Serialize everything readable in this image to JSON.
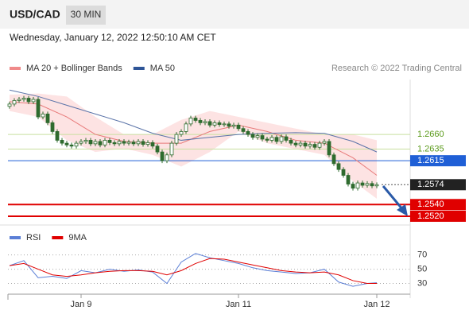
{
  "header": {
    "symbol": "USD/CAD",
    "timeframe": "30 MIN",
    "timestamp": "Wednesday, January 12, 2022 12:50:10 AM CET"
  },
  "chart_data": {
    "type": "candlestick",
    "legend": [
      {
        "name": "MA 20 + Bollinger Bands",
        "color": "#f08a8a"
      },
      {
        "name": "MA 50",
        "color": "#2e5597"
      }
    ],
    "credit": "Research © 2022 Trading Central",
    "xlim": [
      -2,
      84
    ],
    "xticks": [
      {
        "value": 15,
        "label": "Jan 9"
      },
      {
        "value": 48,
        "label": "Jan 11"
      },
      {
        "value": 77,
        "label": "Jan 12"
      }
    ],
    "ylim": [
      1.2505,
      1.2754
    ],
    "up_color": "#ffffff",
    "down_color": "#2e6b2e",
    "wick_color": "#2e6b2e",
    "candles": [
      [
        1.2708,
        1.2716,
        1.2704,
        1.2712
      ],
      [
        1.2712,
        1.2722,
        1.2708,
        1.2718
      ],
      [
        1.2718,
        1.2724,
        1.2714,
        1.272
      ],
      [
        1.272,
        1.2726,
        1.2716,
        1.2722
      ],
      [
        1.2722,
        1.2726,
        1.2712,
        1.2716
      ],
      [
        1.2716,
        1.2724,
        1.2712,
        1.272
      ],
      [
        1.272,
        1.2724,
        1.2686,
        1.269
      ],
      [
        1.269,
        1.2699,
        1.2686,
        1.2695
      ],
      [
        1.2695,
        1.2699,
        1.2676,
        1.268
      ],
      [
        1.268,
        1.2684,
        1.2661,
        1.2665
      ],
      [
        1.2665,
        1.2669,
        1.2646,
        1.265
      ],
      [
        1.265,
        1.2654,
        1.2641,
        1.2645
      ],
      [
        1.2645,
        1.2649,
        1.2638,
        1.2642
      ],
      [
        1.2642,
        1.2646,
        1.2636,
        1.264
      ],
      [
        1.264,
        1.2649,
        1.2636,
        1.2645
      ],
      [
        1.2645,
        1.2652,
        1.2641,
        1.2648
      ],
      [
        1.2648,
        1.2654,
        1.2644,
        1.265
      ],
      [
        1.265,
        1.2654,
        1.264,
        1.2644
      ],
      [
        1.2644,
        1.2652,
        1.264,
        1.2648
      ],
      [
        1.2648,
        1.2652,
        1.2638,
        1.2642
      ],
      [
        1.2642,
        1.2654,
        1.2638,
        1.265
      ],
      [
        1.265,
        1.2654,
        1.2642,
        1.2646
      ],
      [
        1.2646,
        1.265,
        1.264,
        1.2644
      ],
      [
        1.2644,
        1.2652,
        1.264,
        1.2648
      ],
      [
        1.2648,
        1.2652,
        1.2641,
        1.2645
      ],
      [
        1.2645,
        1.2651,
        1.2641,
        1.2647
      ],
      [
        1.2647,
        1.2651,
        1.264,
        1.2644
      ],
      [
        1.2644,
        1.2652,
        1.264,
        1.2648
      ],
      [
        1.2648,
        1.2652,
        1.2639,
        1.2643
      ],
      [
        1.2643,
        1.265,
        1.2639,
        1.2646
      ],
      [
        1.2646,
        1.265,
        1.2636,
        1.264
      ],
      [
        1.264,
        1.2644,
        1.2626,
        1.263
      ],
      [
        1.263,
        1.2634,
        1.2611,
        1.2615
      ],
      [
        1.2615,
        1.2629,
        1.2611,
        1.2625
      ],
      [
        1.2625,
        1.2649,
        1.2621,
        1.2645
      ],
      [
        1.2645,
        1.2664,
        1.2641,
        1.266
      ],
      [
        1.266,
        1.2669,
        1.2656,
        1.2665
      ],
      [
        1.2665,
        1.2682,
        1.2661,
        1.2678
      ],
      [
        1.2678,
        1.2692,
        1.2674,
        1.2688
      ],
      [
        1.2688,
        1.2692,
        1.268,
        1.2684
      ],
      [
        1.2684,
        1.2688,
        1.2676,
        1.268
      ],
      [
        1.268,
        1.2686,
        1.2676,
        1.2682
      ],
      [
        1.2682,
        1.2686,
        1.2672,
        1.2676
      ],
      [
        1.2676,
        1.2684,
        1.2672,
        1.268
      ],
      [
        1.268,
        1.2684,
        1.2673,
        1.2677
      ],
      [
        1.2677,
        1.2682,
        1.2673,
        1.2678
      ],
      [
        1.2678,
        1.2682,
        1.267,
        1.2674
      ],
      [
        1.2674,
        1.268,
        1.267,
        1.2676
      ],
      [
        1.2676,
        1.268,
        1.2666,
        1.267
      ],
      [
        1.267,
        1.2674,
        1.2661,
        1.2665
      ],
      [
        1.2665,
        1.2669,
        1.2656,
        1.266
      ],
      [
        1.266,
        1.2664,
        1.2651,
        1.2655
      ],
      [
        1.2655,
        1.2662,
        1.2651,
        1.2658
      ],
      [
        1.2658,
        1.2662,
        1.2648,
        1.2652
      ],
      [
        1.2652,
        1.2656,
        1.2646,
        1.265
      ],
      [
        1.265,
        1.2659,
        1.2646,
        1.2655
      ],
      [
        1.2655,
        1.2659,
        1.2644,
        1.2648
      ],
      [
        1.2648,
        1.266,
        1.2644,
        1.2656
      ],
      [
        1.2656,
        1.266,
        1.2646,
        1.265
      ],
      [
        1.265,
        1.2654,
        1.2641,
        1.2645
      ],
      [
        1.2645,
        1.2649,
        1.2638,
        1.2642
      ],
      [
        1.2642,
        1.2649,
        1.2638,
        1.2645
      ],
      [
        1.2645,
        1.2649,
        1.2636,
        1.264
      ],
      [
        1.264,
        1.2647,
        1.2636,
        1.2643
      ],
      [
        1.2643,
        1.2647,
        1.2634,
        1.2638
      ],
      [
        1.2638,
        1.2649,
        1.2634,
        1.2645
      ],
      [
        1.2645,
        1.2652,
        1.2641,
        1.2648
      ],
      [
        1.2648,
        1.2652,
        1.2621,
        1.2625
      ],
      [
        1.2625,
        1.2629,
        1.2606,
        1.261
      ],
      [
        1.261,
        1.2614,
        1.2596,
        1.26
      ],
      [
        1.26,
        1.2604,
        1.2586,
        1.259
      ],
      [
        1.259,
        1.2594,
        1.2571,
        1.2575
      ],
      [
        1.2575,
        1.2579,
        1.2564,
        1.2568
      ],
      [
        1.2568,
        1.2581,
        1.2564,
        1.2577
      ],
      [
        1.2577,
        1.2581,
        1.2569,
        1.2573
      ],
      [
        1.2573,
        1.258,
        1.2569,
        1.2576
      ],
      [
        1.2576,
        1.258,
        1.2568,
        1.2572
      ],
      [
        1.2572,
        1.2578,
        1.2568,
        1.2574
      ]
    ],
    "overlay_x": [
      0,
      6,
      12,
      18,
      24,
      30,
      36,
      42,
      48,
      54,
      60,
      66,
      72,
      77
    ],
    "bands": {
      "color": "#fcdcdc",
      "upper": [
        1.2728,
        1.273,
        1.2725,
        1.269,
        1.266,
        1.266,
        1.2685,
        1.27,
        1.269,
        1.268,
        1.267,
        1.266,
        1.266,
        1.265
      ],
      "lower": [
        1.27,
        1.269,
        1.265,
        1.263,
        1.2636,
        1.2625,
        1.2605,
        1.263,
        1.2665,
        1.2645,
        1.2635,
        1.2625,
        1.258,
        1.255
      ]
    },
    "series": [
      {
        "name": "MA 20",
        "color": "#e87a7a",
        "values": [
          1.2716,
          1.2712,
          1.269,
          1.266,
          1.2648,
          1.2645,
          1.2645,
          1.2665,
          1.2676,
          1.2665,
          1.265,
          1.2645,
          1.262,
          1.259
        ]
      },
      {
        "name": "MA 50",
        "color": "#5a73a8",
        "values": [
          1.2736,
          1.2725,
          1.271,
          1.2695,
          1.268,
          1.2662,
          1.265,
          1.2655,
          1.266,
          1.2662,
          1.2663,
          1.2662,
          1.2648,
          1.263
        ]
      }
    ],
    "levels": [
      {
        "value": 1.266,
        "label": "1.2660",
        "color": "#5a9a1a",
        "line_color": "#c8df9f",
        "boxed": false,
        "style": "solid"
      },
      {
        "value": 1.2635,
        "label": "1.2635",
        "color": "#5a9a1a",
        "line_color": "#c8df9f",
        "boxed": false,
        "style": "solid"
      },
      {
        "value": 1.2615,
        "label": "1.2615",
        "color": "#1f5fd6",
        "line_color": "#1f5fd6",
        "boxed": true,
        "style": "solid"
      },
      {
        "value": 1.2574,
        "label": "1.2574",
        "color": "#222222",
        "line_color": "#555555",
        "boxed": true,
        "style": "dotted"
      },
      {
        "value": 1.254,
        "label": "1.2540",
        "color": "#e00000",
        "line_color": "#e00000",
        "boxed": true,
        "style": "thick"
      },
      {
        "value": 1.252,
        "label": "1.2520",
        "color": "#e00000",
        "line_color": "#e00000",
        "boxed": true,
        "style": "thick"
      }
    ],
    "rsi": {
      "legend": [
        {
          "name": "RSI",
          "color": "#5b7fd6"
        },
        {
          "name": "9MA",
          "color": "#e00000"
        }
      ],
      "ylim": [
        15,
        93
      ],
      "yticks": [
        70,
        50,
        30
      ],
      "x": [
        0,
        3,
        6,
        9,
        12,
        15,
        18,
        21,
        24,
        27,
        30,
        33,
        36,
        39,
        42,
        45,
        48,
        51,
        54,
        57,
        60,
        63,
        66,
        69,
        72,
        75,
        77
      ],
      "series": [
        {
          "name": "RSI",
          "color": "#5b7fd6",
          "values": [
            55,
            62,
            38,
            40,
            37,
            48,
            45,
            50,
            47,
            49,
            46,
            30,
            60,
            72,
            66,
            62,
            58,
            52,
            48,
            46,
            44,
            45,
            50,
            32,
            26,
            30,
            31
          ]
        },
        {
          "name": "9MA",
          "color": "#e00000",
          "values": [
            55,
            58,
            50,
            42,
            40,
            42,
            45,
            47,
            48,
            48,
            47,
            42,
            48,
            58,
            65,
            64,
            60,
            56,
            52,
            48,
            46,
            45,
            46,
            42,
            34,
            30,
            30
          ]
        }
      ]
    }
  }
}
